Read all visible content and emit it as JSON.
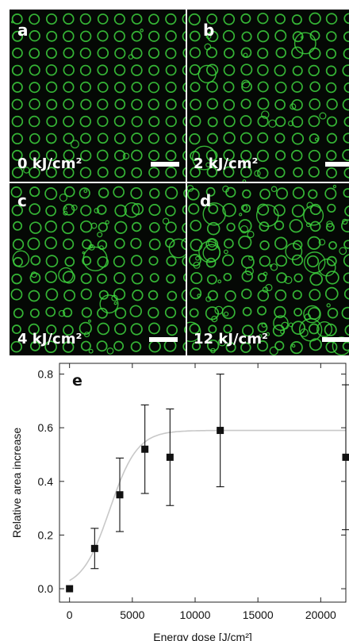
{
  "panels": [
    {
      "letter": "a",
      "dose": "0 kJ/cm²"
    },
    {
      "letter": "b",
      "dose": "2 kJ/cm²"
    },
    {
      "letter": "c",
      "dose": "4 kJ/cm²"
    },
    {
      "letter": "d",
      "dose": "12 kJ/cm²"
    }
  ],
  "colors": {
    "droplet": "#3ed43e",
    "panel_bg": "#050805",
    "fit_curve": "#c8c8c8"
  },
  "chart_data": {
    "type": "scatter",
    "panel_letter": "e",
    "xlabel": "Energy dose [J/cm²]",
    "ylabel": "Relative area increase",
    "xlim": [
      -800,
      22000
    ],
    "ylim": [
      -0.05,
      0.84
    ],
    "x_ticks": [
      0,
      5000,
      10000,
      15000,
      20000
    ],
    "x_tick_labels": [
      "0",
      "5000",
      "10000",
      "15000",
      "20000"
    ],
    "y_ticks": [
      0.0,
      0.2,
      0.4,
      0.6,
      0.8
    ],
    "y_tick_labels": [
      "0.0",
      "0.2",
      "0.4",
      "0.6",
      "0.8"
    ],
    "points": [
      {
        "x": 0,
        "y": 0.0,
        "err": 0.0
      },
      {
        "x": 2000,
        "y": 0.15,
        "err": 0.075
      },
      {
        "x": 4000,
        "y": 0.35,
        "err": 0.137
      },
      {
        "x": 6000,
        "y": 0.52,
        "err": 0.165
      },
      {
        "x": 8000,
        "y": 0.49,
        "err": 0.18
      },
      {
        "x": 12000,
        "y": 0.59,
        "err": 0.21
      },
      {
        "x": 22000,
        "y": 0.49,
        "err": 0.27
      }
    ],
    "fit": {
      "plateau": 0.59,
      "midpoint": 3200,
      "width": 1100
    },
    "grid": false
  }
}
